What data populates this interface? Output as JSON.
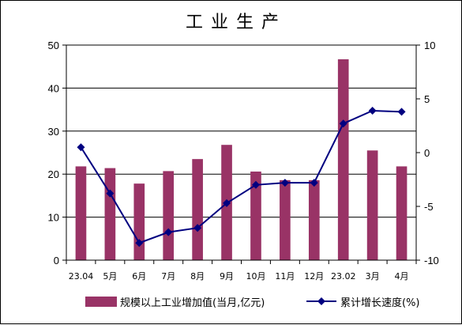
{
  "chart_data": {
    "type": "bar+line",
    "title": "工业生产",
    "categories": [
      "23.04",
      "5月",
      "6月",
      "7月",
      "8月",
      "9月",
      "10月",
      "11月",
      "12月",
      "23.02",
      "3月",
      "4月"
    ],
    "series": [
      {
        "name": "规模以上工业增加值(当月,亿元)",
        "type": "bar",
        "axis": "left",
        "color": "#993366",
        "values": [
          21.8,
          21.4,
          17.8,
          20.7,
          23.5,
          26.8,
          20.6,
          18.6,
          18.6,
          46.7,
          25.5,
          21.8
        ]
      },
      {
        "name": "累计增长速度(%)",
        "type": "line",
        "axis": "right",
        "color": "#000080",
        "values": [
          0.5,
          -3.8,
          -8.4,
          -7.4,
          -7.0,
          -4.7,
          -3.0,
          -2.8,
          -2.8,
          2.7,
          3.9,
          3.8
        ]
      }
    ],
    "y_left": {
      "min": 0,
      "max": 50,
      "ticks": [
        0,
        10,
        20,
        30,
        40,
        50
      ]
    },
    "y_right": {
      "min": -10,
      "max": 10,
      "ticks": [
        -10,
        -5,
        0,
        5,
        10
      ]
    },
    "grid": true,
    "legend": "bottom"
  }
}
